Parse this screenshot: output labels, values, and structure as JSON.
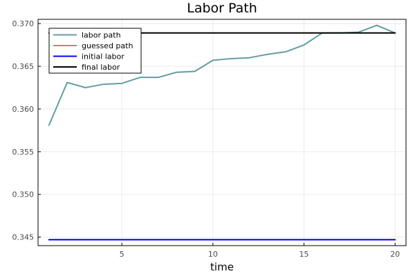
{
  "chart_data": {
    "type": "line",
    "title": "Labor Path",
    "xlabel": "time",
    "ylabel": "",
    "xlim": [
      0.4,
      20.6
    ],
    "ylim": [
      0.344,
      0.3705
    ],
    "x_ticks": [
      5,
      10,
      15,
      20
    ],
    "y_ticks": [
      0.345,
      0.35,
      0.355,
      0.36,
      0.365,
      0.37
    ],
    "x_tick_labels": [
      "5",
      "10",
      "15",
      "20"
    ],
    "y_tick_labels": [
      "0.345",
      "0.350",
      "0.355",
      "0.360",
      "0.365",
      "0.370"
    ],
    "grid": true,
    "legend_position": "top-left",
    "x": [
      1,
      2,
      3,
      4,
      5,
      6,
      7,
      8,
      9,
      10,
      11,
      12,
      13,
      14,
      15,
      16,
      17,
      18,
      19,
      20
    ],
    "series": [
      {
        "name": "labor path",
        "color": "#5f9ea0",
        "values": [
          0.3581,
          0.3631,
          0.3625,
          0.3629,
          0.363,
          0.3637,
          0.3637,
          0.3643,
          0.3644,
          0.3657,
          0.3659,
          0.366,
          0.3664,
          0.3667,
          0.3675,
          0.3689,
          0.3689,
          0.369,
          0.3698,
          0.3689
        ]
      },
      {
        "name": "guessed path",
        "color": "#e26f7b",
        "values": [
          0.3447,
          0.3447,
          0.3447,
          0.3447,
          0.3447,
          0.3447,
          0.3447,
          0.3447,
          0.3447,
          0.3447,
          0.3447,
          0.3447,
          0.3447,
          0.3447,
          0.3447,
          0.3447,
          0.3447,
          0.3447,
          0.3447,
          0.3447
        ]
      },
      {
        "name": "initial labor",
        "color": "#0000ff",
        "values": [
          0.3447,
          0.3447,
          0.3447,
          0.3447,
          0.3447,
          0.3447,
          0.3447,
          0.3447,
          0.3447,
          0.3447,
          0.3447,
          0.3447,
          0.3447,
          0.3447,
          0.3447,
          0.3447,
          0.3447,
          0.3447,
          0.3447,
          0.3447
        ]
      },
      {
        "name": "final labor",
        "color": "#000000",
        "values": [
          0.3689,
          0.3689,
          0.3689,
          0.3689,
          0.3689,
          0.3689,
          0.3689,
          0.3689,
          0.3689,
          0.3689,
          0.3689,
          0.3689,
          0.3689,
          0.3689,
          0.3689,
          0.3689,
          0.3689,
          0.3689,
          0.3689,
          0.3689
        ]
      }
    ]
  }
}
